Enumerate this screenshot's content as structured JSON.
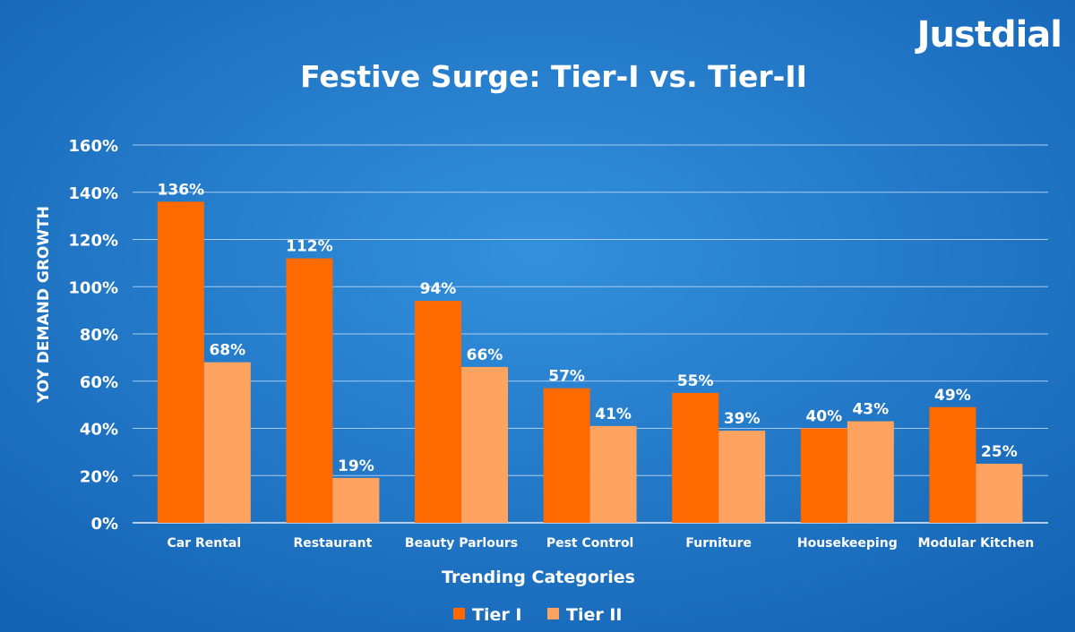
{
  "brand": "Justdial",
  "colors": {
    "tier1": "#ff6a00",
    "tier2": "#ffa460",
    "bg_center": "#2f8ad6",
    "bg_edge": "#1462b4"
  },
  "chart_data": {
    "type": "bar",
    "title": "Festive Surge: Tier-I vs. Tier-II",
    "xlabel": "Trending Categories",
    "ylabel": "YOY DEMAND GROWTH",
    "ylim": [
      0,
      160
    ],
    "yticks": [
      0,
      20,
      40,
      60,
      80,
      100,
      120,
      140,
      160
    ],
    "ytick_labels": [
      "0%",
      "20%",
      "40%",
      "60%",
      "80%",
      "100%",
      "120%",
      "140%",
      "160%"
    ],
    "grid": true,
    "legend_position": "bottom",
    "categories": [
      "Car Rental",
      "Restaurant",
      "Beauty Parlours",
      "Pest Control",
      "Furniture",
      "Housekeeping",
      "Modular Kitchen"
    ],
    "series": [
      {
        "name": "Tier I",
        "values": [
          136,
          112,
          94,
          57,
          55,
          40,
          49
        ],
        "labels": [
          "136%",
          "112%",
          "94%",
          "57%",
          "55%",
          "40%",
          "49%"
        ]
      },
      {
        "name": "Tier II",
        "values": [
          68,
          19,
          66,
          41,
          39,
          43,
          25
        ],
        "labels": [
          "68%",
          "19%",
          "66%",
          "41%",
          "39%",
          "43%",
          "25%"
        ]
      }
    ]
  }
}
